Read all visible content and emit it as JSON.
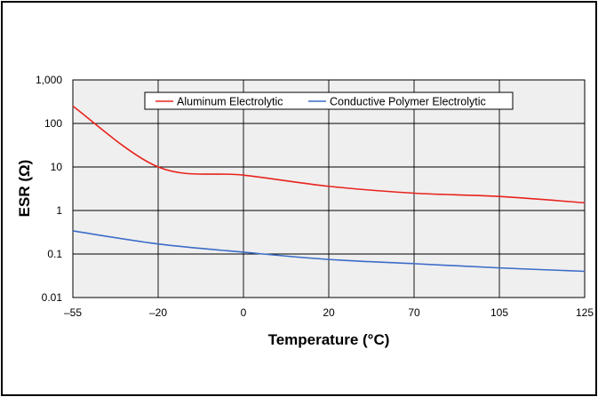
{
  "chart_data": {
    "type": "line",
    "xlabel": "Temperature (°C)",
    "ylabel": "ESR (Ω)",
    "y_scale": "log",
    "ylim": [
      0.01,
      1000
    ],
    "grid": true,
    "legend_position": "top",
    "categories": [
      "-55",
      "-20",
      "0",
      "20",
      "70",
      "105",
      "125"
    ],
    "y_ticks": [
      "0.01",
      "0.1",
      "1",
      "10",
      "100",
      "1,000"
    ],
    "series": [
      {
        "name": "Aluminum Electrolytic",
        "color": "#e8231c",
        "points": [
          {
            "x": "-55",
            "y": 250
          },
          {
            "x": "-20",
            "y": 10
          },
          {
            "x": "0",
            "y": 6.5
          },
          {
            "x": "20",
            "y": 3.6
          },
          {
            "x": "70",
            "y": 2.5
          },
          {
            "x": "105",
            "y": 2.1
          },
          {
            "x": "125",
            "y": 1.5
          }
        ]
      },
      {
        "name": "Conductive Polymer Electrolytic",
        "color": "#3b6cc8",
        "points": [
          {
            "x": "-55",
            "y": 0.34
          },
          {
            "x": "-20",
            "y": 0.17
          },
          {
            "x": "0",
            "y": 0.11
          },
          {
            "x": "20",
            "y": 0.075
          },
          {
            "x": "70",
            "y": 0.06
          },
          {
            "x": "105",
            "y": 0.048
          },
          {
            "x": "125",
            "y": 0.04
          }
        ]
      }
    ]
  }
}
